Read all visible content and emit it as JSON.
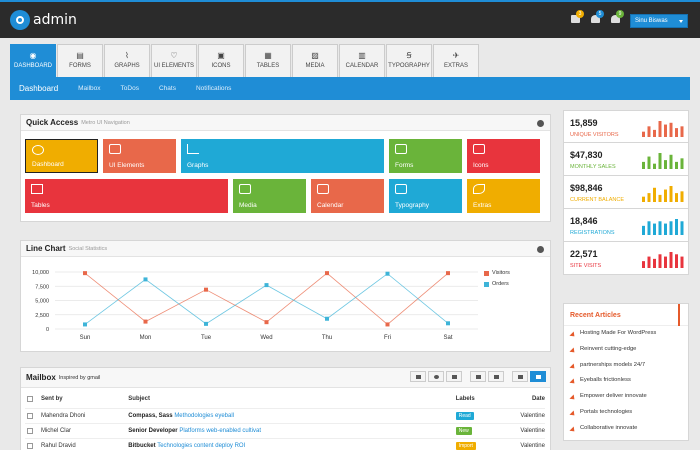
{
  "brand": {
    "name": "admin"
  },
  "header": {
    "icons": [
      {
        "icon": "envelope-icon",
        "badge": "3",
        "badge_color": "#f0ad00"
      },
      {
        "icon": "users-icon",
        "badge": "5",
        "badge_color": "#1f8dd6"
      },
      {
        "icon": "bell-icon",
        "badge": "9",
        "badge_color": "#6ab43a"
      }
    ],
    "user_name": "Sinu Biswas"
  },
  "tabs": [
    {
      "label": "DASHBOARD",
      "icon": "dashboard-icon",
      "glyph": "◉",
      "active": true
    },
    {
      "label": "FORMS",
      "icon": "forms-icon",
      "glyph": "▤"
    },
    {
      "label": "GRAPHS",
      "icon": "graphs-icon",
      "glyph": "⌇"
    },
    {
      "label": "UI ELEMENTS",
      "icon": "heart-icon",
      "glyph": "♡"
    },
    {
      "label": "ICONS",
      "icon": "briefcase-icon",
      "glyph": "▣"
    },
    {
      "label": "TABLES",
      "icon": "tables-icon",
      "glyph": "▦"
    },
    {
      "label": "MEDIA",
      "icon": "media-icon",
      "glyph": "▨"
    },
    {
      "label": "CALENDAR",
      "icon": "calendar-icon",
      "glyph": "▥"
    },
    {
      "label": "TYPOGRAPHY",
      "icon": "typography-icon",
      "glyph": "Ꞩ"
    },
    {
      "label": "EXTRAS",
      "icon": "plane-icon",
      "glyph": "✈"
    }
  ],
  "subnav": [
    "Dashboard",
    "Mailbox",
    "ToDos",
    "Chats",
    "Notifications"
  ],
  "quick_access": {
    "title": "Quick Access",
    "subtitle": "Metro UI Navigation",
    "tiles": [
      {
        "label": "Dashboard",
        "color": "#f0ad00",
        "icon": "dashboard-icon"
      },
      {
        "label": "UI Elements",
        "color": "#e8684a",
        "icon": "heart-icon"
      },
      {
        "label": "Graphs",
        "color": "#1fa9d6",
        "icon": "graphs-icon"
      },
      {
        "label": "Forms",
        "color": "#6ab43a",
        "icon": "forms-icon"
      },
      {
        "label": "Icons",
        "color": "#e8343d",
        "icon": "briefcase-icon"
      },
      {
        "label": "Tables",
        "color": "#e8343d",
        "icon": "tables-icon"
      },
      {
        "label": "Media",
        "color": "#6ab43a",
        "icon": "media-icon"
      },
      {
        "label": "Calendar",
        "color": "#e8684a",
        "icon": "calendar-icon"
      },
      {
        "label": "Typography",
        "color": "#1fa9d6",
        "icon": "typography-icon"
      },
      {
        "label": "Extras",
        "color": "#f0ad00",
        "icon": "plane-icon"
      }
    ]
  },
  "line_chart": {
    "title": "Line Chart",
    "subtitle": "Social Statistics"
  },
  "chart_data": {
    "type": "line",
    "title": "Line Chart",
    "categories": [
      "Sun",
      "Mon",
      "Tue",
      "Wed",
      "Thu",
      "Fri",
      "Sat"
    ],
    "ylim": [
      0,
      10000
    ],
    "yticks": [
      "10,000",
      "7,500",
      "5,000",
      "2,500",
      "0"
    ],
    "grid": true,
    "legend": "right",
    "series": [
      {
        "name": "Visitors",
        "color": "#e8684a",
        "values": [
          9800,
          1300,
          6900,
          1200,
          9800,
          800,
          9800
        ]
      },
      {
        "name": "Orders",
        "color": "#3eb4d8",
        "values": [
          800,
          8700,
          900,
          7700,
          1800,
          9700,
          1000
        ]
      }
    ]
  },
  "stats": [
    {
      "value": "15,859",
      "label": "UNIQUE VISITORS",
      "color": "#e8684a",
      "spark": [
        3,
        6,
        4,
        9,
        7,
        8,
        5,
        6
      ]
    },
    {
      "value": "$47,830",
      "label": "MONTHLY SALES",
      "color": "#6ab43a",
      "spark": [
        4,
        7,
        3,
        9,
        5,
        8,
        4,
        6
      ]
    },
    {
      "value": "$98,846",
      "label": "CURRENT BALANCE",
      "color": "#f0ad00",
      "spark": [
        3,
        5,
        8,
        4,
        7,
        9,
        5,
        6
      ]
    },
    {
      "value": "18,846",
      "label": "REGISTRATIONS",
      "color": "#1fa9d6",
      "spark": [
        4,
        6,
        5,
        6,
        5,
        6,
        7,
        6
      ]
    },
    {
      "value": "22,571",
      "label": "SITE VISITS",
      "color": "#e8343d",
      "spark": [
        3,
        5,
        4,
        6,
        5,
        7,
        6,
        5
      ]
    }
  ],
  "articles": {
    "title": "Recent Articles",
    "items": [
      "Hosting Made For WordPress",
      "Reinvent cutting-edge",
      "partnerships models 24/7",
      "Eyeballs frictionless",
      "Empower deliver innovate",
      "Portals technologies",
      "Collaborative innovate"
    ]
  },
  "mailbox": {
    "title": "Mailbox",
    "subtitle": "Inspired by gmail",
    "columns": {
      "from": "Sent by",
      "subject": "Subject",
      "labels": "Labels",
      "date": "Date"
    },
    "rows": [
      {
        "from": "Mahendra Dhoni",
        "subject_bold": "Compass, Sass",
        "subject_rest": "Methodologies eyeball",
        "label": "Read",
        "label_color": "#1fa9d6",
        "date": "Valentine"
      },
      {
        "from": "Michel Clar",
        "subject_bold": "Senior Developer",
        "subject_rest": "Platforms web-enabled cultivat",
        "label": "New",
        "label_color": "#6ab43a",
        "date": "Valentine"
      },
      {
        "from": "Rahul Dravid",
        "subject_bold": "Bitbucket",
        "subject_rest": "Technologies content deploy ROI",
        "label": "Import",
        "label_color": "#f0ad00",
        "date": "Valentine"
      }
    ]
  }
}
